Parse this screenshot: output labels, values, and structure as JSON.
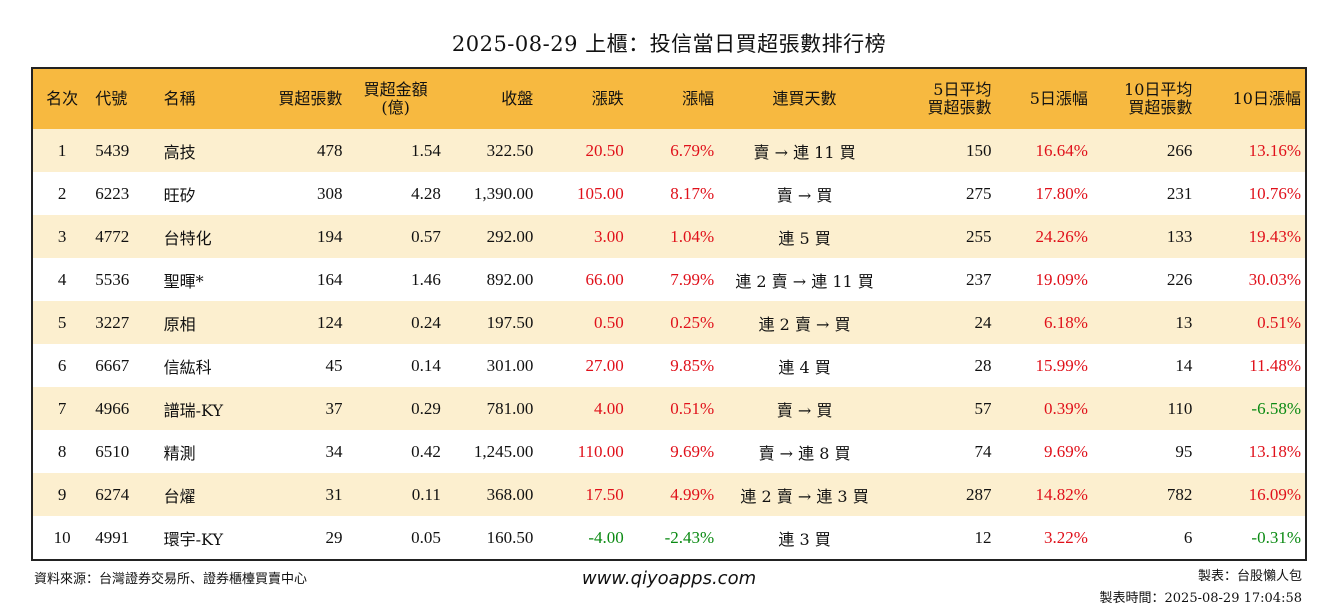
{
  "title": "2025-08-29 上櫃：投信當日買超張數排行榜",
  "headers": [
    "名次",
    "代號",
    "名稱",
    "買超張數",
    "買超金額\n(億)",
    "收盤",
    "漲跌",
    "漲幅",
    "連買天數",
    "5日平均\n買超張數",
    "5日漲幅",
    "10日平均\n買超張數",
    "10日漲幅"
  ],
  "rows": [
    {
      "rank": "1",
      "code": "5439",
      "name": "高技",
      "net_buy": "478",
      "amount": "1.54",
      "close": "322.50",
      "change": "20.50",
      "change_pct": "6.79%",
      "streak": "賣 → 連 11 買",
      "avg5": "150",
      "pct5": "16.64%",
      "avg10": "266",
      "pct10": "13.16%",
      "dir_change": "up",
      "dir_pct": "up",
      "dir_pct5": "up",
      "dir_pct10": "up"
    },
    {
      "rank": "2",
      "code": "6223",
      "name": "旺矽",
      "net_buy": "308",
      "amount": "4.28",
      "close": "1,390.00",
      "change": "105.00",
      "change_pct": "8.17%",
      "streak": "賣 → 買",
      "avg5": "275",
      "pct5": "17.80%",
      "avg10": "231",
      "pct10": "10.76%",
      "dir_change": "up",
      "dir_pct": "up",
      "dir_pct5": "up",
      "dir_pct10": "up"
    },
    {
      "rank": "3",
      "code": "4772",
      "name": "台特化",
      "net_buy": "194",
      "amount": "0.57",
      "close": "292.00",
      "change": "3.00",
      "change_pct": "1.04%",
      "streak": "連 5 買",
      "avg5": "255",
      "pct5": "24.26%",
      "avg10": "133",
      "pct10": "19.43%",
      "dir_change": "up",
      "dir_pct": "up",
      "dir_pct5": "up",
      "dir_pct10": "up"
    },
    {
      "rank": "4",
      "code": "5536",
      "name": "聖暉*",
      "net_buy": "164",
      "amount": "1.46",
      "close": "892.00",
      "change": "66.00",
      "change_pct": "7.99%",
      "streak": "連 2 賣 → 連 11 買",
      "avg5": "237",
      "pct5": "19.09%",
      "avg10": "226",
      "pct10": "30.03%",
      "dir_change": "up",
      "dir_pct": "up",
      "dir_pct5": "up",
      "dir_pct10": "up"
    },
    {
      "rank": "5",
      "code": "3227",
      "name": "原相",
      "net_buy": "124",
      "amount": "0.24",
      "close": "197.50",
      "change": "0.50",
      "change_pct": "0.25%",
      "streak": "連 2 賣 → 買",
      "avg5": "24",
      "pct5": "6.18%",
      "avg10": "13",
      "pct10": "0.51%",
      "dir_change": "up",
      "dir_pct": "up",
      "dir_pct5": "up",
      "dir_pct10": "up"
    },
    {
      "rank": "6",
      "code": "6667",
      "name": "信紘科",
      "net_buy": "45",
      "amount": "0.14",
      "close": "301.00",
      "change": "27.00",
      "change_pct": "9.85%",
      "streak": "連 4 買",
      "avg5": "28",
      "pct5": "15.99%",
      "avg10": "14",
      "pct10": "11.48%",
      "dir_change": "up",
      "dir_pct": "up",
      "dir_pct5": "up",
      "dir_pct10": "up"
    },
    {
      "rank": "7",
      "code": "4966",
      "name": "譜瑞-KY",
      "net_buy": "37",
      "amount": "0.29",
      "close": "781.00",
      "change": "4.00",
      "change_pct": "0.51%",
      "streak": "賣 → 買",
      "avg5": "57",
      "pct5": "0.39%",
      "avg10": "110",
      "pct10": "-6.58%",
      "dir_change": "up",
      "dir_pct": "up",
      "dir_pct5": "up",
      "dir_pct10": "down"
    },
    {
      "rank": "8",
      "code": "6510",
      "name": "精測",
      "net_buy": "34",
      "amount": "0.42",
      "close": "1,245.00",
      "change": "110.00",
      "change_pct": "9.69%",
      "streak": "賣 → 連 8 買",
      "avg5": "74",
      "pct5": "9.69%",
      "avg10": "95",
      "pct10": "13.18%",
      "dir_change": "up",
      "dir_pct": "up",
      "dir_pct5": "up",
      "dir_pct10": "up"
    },
    {
      "rank": "9",
      "code": "6274",
      "name": "台燿",
      "net_buy": "31",
      "amount": "0.11",
      "close": "368.00",
      "change": "17.50",
      "change_pct": "4.99%",
      "streak": "連 2 賣 → 連 3 買",
      "avg5": "287",
      "pct5": "14.82%",
      "avg10": "782",
      "pct10": "16.09%",
      "dir_change": "up",
      "dir_pct": "up",
      "dir_pct5": "up",
      "dir_pct10": "up"
    },
    {
      "rank": "10",
      "code": "4991",
      "name": "環宇-KY",
      "net_buy": "29",
      "amount": "0.05",
      "close": "160.50",
      "change": "-4.00",
      "change_pct": "-2.43%",
      "streak": "連 3 買",
      "avg5": "12",
      "pct5": "3.22%",
      "avg10": "6",
      "pct10": "-0.31%",
      "dir_change": "down",
      "dir_pct": "down",
      "dir_pct5": "up",
      "dir_pct10": "down"
    }
  ],
  "footer": {
    "source": "資料來源：台灣證券交易所、證券櫃檯買賣中心",
    "website": "www.qiyoapps.com",
    "maker": "製表：台股懶人包",
    "made_time": "製表時間：2025-08-29 17:04:58"
  },
  "colors": {
    "header_bg": "#f7b940",
    "odd_row_bg": "#fcefcf",
    "up": "#e0101a",
    "down": "#0a8a12"
  }
}
